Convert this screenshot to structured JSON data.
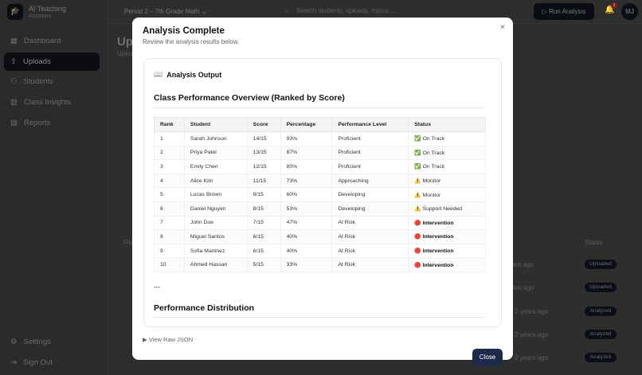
{
  "app": {
    "name": "AI Teaching",
    "subtitle": "Assistant",
    "logo_icon": "graduation-cap-icon"
  },
  "sidebar": {
    "items": [
      {
        "label": "Dashboard",
        "icon": "grid-icon"
      },
      {
        "label": "Uploads",
        "icon": "upload-icon",
        "active": true
      },
      {
        "label": "Students",
        "icon": "users-icon"
      },
      {
        "label": "Class Insights",
        "icon": "bar-chart-icon"
      },
      {
        "label": "Reports",
        "icon": "file-icon"
      }
    ],
    "bottom": [
      {
        "label": "Settings",
        "icon": "gear-icon"
      },
      {
        "label": "Sign Out",
        "icon": "sign-out-icon"
      }
    ]
  },
  "topbar": {
    "period": "Period 2 – 7th Grade Math",
    "search_placeholder": "Search students, uploads, topics...",
    "run_label": "Run Analysis",
    "notifications": "3",
    "avatar": "MJ"
  },
  "page": {
    "title": "Uploads",
    "subtitle": "Uploads",
    "col_file": "File",
    "col_status": "Status",
    "rows": [
      {
        "time": "2 minutes ago",
        "status": "Uploaded"
      },
      {
        "time": "2 minutes ago",
        "status": "Uploaded"
      },
      {
        "time": "about 2 years ago",
        "status": "Analyzed"
      },
      {
        "time": "about 2 years ago",
        "status": "Analyzed"
      },
      {
        "time": "about 2 years ago",
        "status": "Analyzed"
      }
    ]
  },
  "modal": {
    "title": "Analysis Complete",
    "subtitle": "Review the analysis results below.",
    "output_heading": "Analysis Output",
    "section1": "Class Performance Overview (Ranked by Score)",
    "separator": "---",
    "section2": "Performance Distribution",
    "raw_toggle": "▶ View Raw JSON",
    "close_label": "Close",
    "close_x": "×",
    "table": {
      "headers": [
        "Rank",
        "Student",
        "Score",
        "Percentage",
        "Performance Level",
        "Status"
      ],
      "rows": [
        [
          "1",
          "Sarah Johnson",
          "14/15",
          "93%",
          "Proficient",
          "✅ On Track"
        ],
        [
          "2",
          "Priya Patel",
          "13/15",
          "87%",
          "Proficient",
          "✅ On Track"
        ],
        [
          "3",
          "Emily Chen",
          "12/15",
          "80%",
          "Proficient",
          "✅ On Track"
        ],
        [
          "4",
          "Alice Kim",
          "11/15",
          "73%",
          "Approaching",
          "⚠️ Monitor"
        ],
        [
          "5",
          "Lucas Brown",
          "9/15",
          "60%",
          "Developing",
          "⚠️ Monitor"
        ],
        [
          "6",
          "Daniel Nguyen",
          "8/15",
          "53%",
          "Developing",
          "⚠️ Support Needed"
        ],
        [
          "7",
          "John Doe",
          "7/15",
          "47%",
          "At Risk",
          "🔴 Intervention"
        ],
        [
          "8",
          "Miguel Santos",
          "6/15",
          "40%",
          "At Risk",
          "🔴 Intervention"
        ],
        [
          "9",
          "Sofia Martinez",
          "6/15",
          "40%",
          "At Risk",
          "🔴 Intervention"
        ],
        [
          "10",
          "Ahmed Hassan",
          "5/15",
          "33%",
          "At Risk",
          "🔴 Intervention"
        ]
      ]
    }
  }
}
